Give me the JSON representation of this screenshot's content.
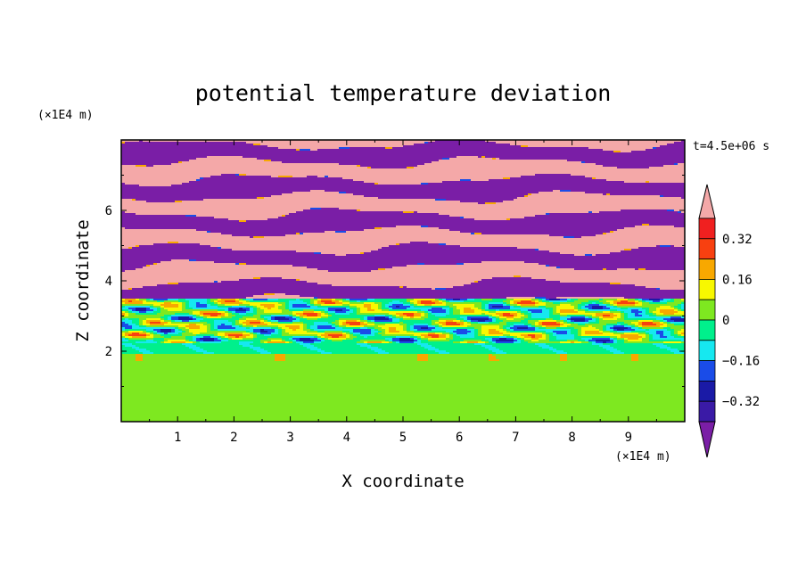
{
  "chart_data": {
    "type": "heatmap",
    "title": "potential temperature deviation",
    "xlabel": "X coordinate",
    "ylabel": "Z coordinate",
    "x_unit": "(×1E4 m)",
    "y_unit": "(×1E4 m)",
    "time_label": "t=4.5e+06 s",
    "xlim": [
      0,
      10
    ],
    "ylim": [
      0,
      8
    ],
    "x_ticks": [
      1,
      2,
      3,
      4,
      5,
      6,
      7,
      8,
      9
    ],
    "y_ticks": [
      2,
      4,
      6
    ],
    "colorbar": {
      "levels": [
        -0.4,
        -0.32,
        -0.24,
        -0.16,
        -0.08,
        0,
        0.08,
        0.16,
        0.24,
        0.32,
        0.4
      ],
      "tick_labels": [
        "0.32",
        "0.16",
        "0",
        "−0.16",
        "−0.32"
      ],
      "tick_values": [
        0.32,
        0.16,
        0,
        -0.16,
        -0.32
      ],
      "colors": [
        "#7a1ea6",
        "#3a1aa6",
        "#1a1aa6",
        "#1a4ce8",
        "#16e8f0",
        "#00f08c",
        "#7ee820",
        "#f8f800",
        "#f8a800",
        "#f84010",
        "#f02020",
        "#f4a8a8"
      ],
      "extend": "both"
    },
    "regions": [
      {
        "z_range": [
          0,
          2
        ],
        "description_values": [
          0,
          0.08
        ],
        "dominant": "near-zero"
      },
      {
        "z_range": [
          2,
          3.5
        ],
        "description_values": [
          -0.16,
          0.32
        ],
        "dominant": "mixed"
      },
      {
        "z_range": [
          3.5,
          8
        ],
        "description_values": [
          -0.4,
          0.4
        ],
        "dominant": "alternating bands"
      }
    ]
  }
}
